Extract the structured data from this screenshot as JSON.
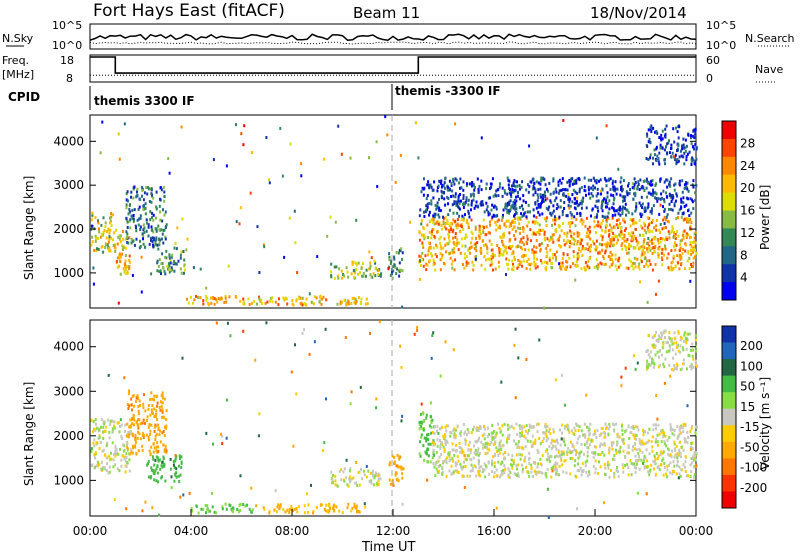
{
  "header": {
    "station": "Fort Hays East (fitACF)",
    "beam": "Beam 11",
    "date": "18/Nov/2014"
  },
  "chart_data": [
    {
      "type": "line",
      "id": "nsky-panel",
      "left_label": "N.Sky",
      "right_label": "N.Search",
      "left_ticks": [
        "10^5",
        "10^0"
      ],
      "right_ticks": [
        "10^5",
        "10^0"
      ],
      "series": [
        {
          "name": "N.Sky",
          "style": "solid",
          "level": 0.35
        },
        {
          "name": "N.Search",
          "style": "dotted",
          "level": 0.2
        }
      ]
    },
    {
      "type": "line",
      "id": "freq-panel",
      "left_label": "Freq.",
      "left_units": "[MHz]",
      "right_label": "Nave",
      "left_ticks": [
        "18",
        "8"
      ],
      "right_ticks": [
        "60",
        "0"
      ],
      "x": [
        0,
        1.0,
        1.0,
        13.0,
        13.0,
        24
      ],
      "freq_mhz": [
        18,
        18,
        11,
        11,
        18,
        18
      ],
      "nave_level": 0.25
    },
    {
      "type": "table",
      "id": "cpid-panel",
      "label": "CPID",
      "segments": [
        {
          "text": "themis 3300 IF",
          "start_hour": 0
        },
        {
          "text": "themis -3300 IF",
          "start_hour": 12
        }
      ]
    },
    {
      "type": "heatmap",
      "id": "power-panel",
      "ylabel": "Slant Range [km]",
      "yticks": [
        1000,
        2000,
        3000,
        4000
      ],
      "ylim": [
        200,
        4600
      ],
      "xlim": [
        0,
        24
      ],
      "colorbar": {
        "label": "Power [dB]",
        "ticks": [
          "28",
          "24",
          "20",
          "16",
          "12",
          "8",
          "4"
        ],
        "colors": [
          "#ee0000",
          "#ff4400",
          "#ff8800",
          "#ffbb00",
          "#dddd00",
          "#88bb44",
          "#338855",
          "#226688",
          "#1133aa",
          "#0000ee"
        ]
      },
      "regions": [
        {
          "t": [
            0.0,
            1.0
          ],
          "r": [
            1500,
            2400
          ],
          "v": 18
        },
        {
          "t": [
            1.0,
            1.6
          ],
          "r": [
            1000,
            2000
          ],
          "v": 20
        },
        {
          "t": [
            1.4,
            3.0
          ],
          "r": [
            1600,
            3000
          ],
          "v": 10
        },
        {
          "t": [
            2.6,
            3.8
          ],
          "r": [
            1000,
            1600
          ],
          "v": 12
        },
        {
          "t": [
            3.8,
            8.5
          ],
          "r": [
            300,
            500
          ],
          "v": 22
        },
        {
          "t": [
            8.0,
            11.0
          ],
          "r": [
            300,
            500
          ],
          "v": 20
        },
        {
          "t": [
            9.5,
            11.5
          ],
          "r": [
            900,
            1300
          ],
          "v": 16
        },
        {
          "t": [
            11.8,
            12.4
          ],
          "r": [
            900,
            1600
          ],
          "v": 10
        },
        {
          "t": [
            13.0,
            24.0
          ],
          "r": [
            1100,
            2300
          ],
          "v": 22
        },
        {
          "t": [
            13.0,
            24.0
          ],
          "r": [
            2300,
            3200
          ],
          "v": 6
        },
        {
          "t": [
            22.0,
            24.0
          ],
          "r": [
            3500,
            4400
          ],
          "v": 6
        }
      ]
    },
    {
      "type": "heatmap",
      "id": "velocity-panel",
      "ylabel": "Slant Range [km]",
      "yticks": [
        1000,
        2000,
        3000,
        4000
      ],
      "ylim": [
        200,
        4600
      ],
      "xlim": [
        0,
        24
      ],
      "xticks": [
        "00:00",
        "04:00",
        "08:00",
        "12:00",
        "16:00",
        "20:00",
        "00:00"
      ],
      "xlabel": "Time UT",
      "colorbar": {
        "label": "Velocity [m s⁻¹]",
        "ticks": [
          "200",
          "100",
          "50",
          "15",
          "-15",
          "-50",
          "-100",
          "-200"
        ],
        "colors": [
          "#1133aa",
          "#2266bb",
          "#226644",
          "#44bb44",
          "#88dd44",
          "#c8c8c0",
          "#ffcc00",
          "#ffaa00",
          "#ff7700",
          "#ff3300",
          "#ee0000"
        ]
      },
      "regions": [
        {
          "t": [
            0.0,
            1.6
          ],
          "r": [
            1200,
            2400
          ],
          "v": 0
        },
        {
          "t": [
            1.4,
            3.0
          ],
          "r": [
            1600,
            3000
          ],
          "v": -60
        },
        {
          "t": [
            2.2,
            3.6
          ],
          "r": [
            1000,
            1600
          ],
          "v": 60
        },
        {
          "t": [
            3.8,
            6.5
          ],
          "r": [
            300,
            500
          ],
          "v": 30
        },
        {
          "t": [
            6.5,
            11.0
          ],
          "r": [
            300,
            500
          ],
          "v": -40
        },
        {
          "t": [
            9.5,
            11.5
          ],
          "r": [
            900,
            1300
          ],
          "v": 0
        },
        {
          "t": [
            11.8,
            12.4
          ],
          "r": [
            900,
            1600
          ],
          "v": -60
        },
        {
          "t": [
            13.0,
            13.6
          ],
          "r": [
            1400,
            2600
          ],
          "v": 40
        },
        {
          "t": [
            13.5,
            24.0
          ],
          "r": [
            1100,
            2300
          ],
          "v": 0
        },
        {
          "t": [
            22.0,
            24.0
          ],
          "r": [
            3500,
            4400
          ],
          "v": 0
        }
      ]
    }
  ]
}
